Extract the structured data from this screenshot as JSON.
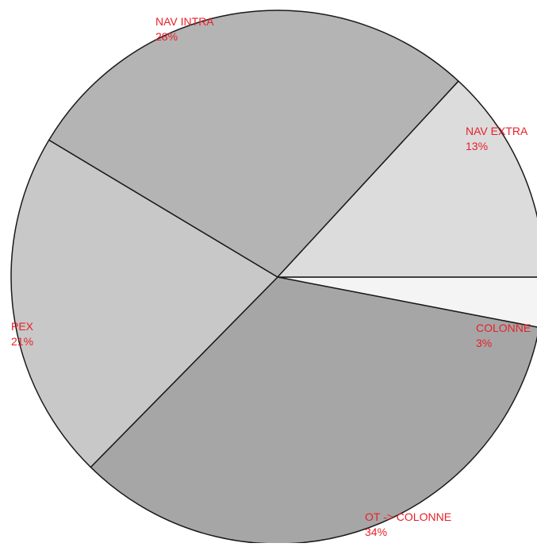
{
  "chart_data": {
    "type": "pie",
    "title": "",
    "slices": [
      {
        "label": "COLONNE",
        "percent_label": "3%",
        "value": 3,
        "color": "#f4f4f4"
      },
      {
        "label": "OT -> COLONNE",
        "percent_label": "34%",
        "value": 34,
        "color": "#a6a6a6"
      },
      {
        "label": "PEX",
        "percent_label": "21%",
        "value": 21,
        "color": "#c8c8c8"
      },
      {
        "label": "NAV INTRA",
        "percent_label": "28%",
        "value": 28,
        "color": "#b4b4b4"
      },
      {
        "label": "NAV EXTRA",
        "percent_label": "13%",
        "value": 13,
        "color": "#dcdcdc"
      }
    ],
    "label_color": "#e8202a",
    "edge_color": "#1a1a1a",
    "legend": "none",
    "grid": false
  }
}
